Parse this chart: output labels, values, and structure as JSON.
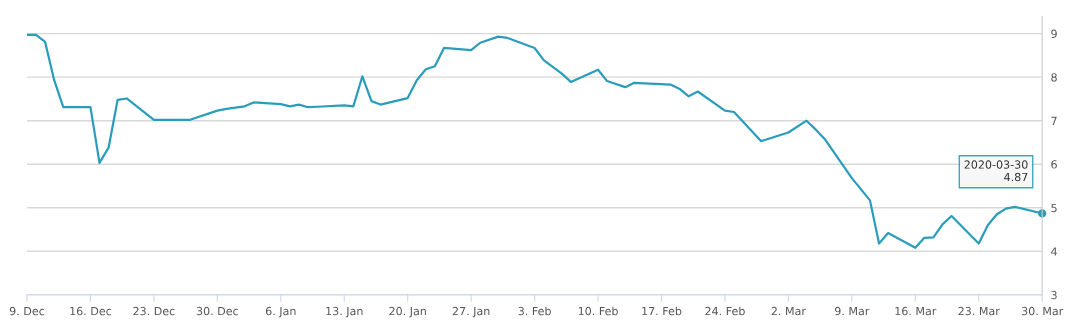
{
  "chart_data": {
    "type": "line",
    "grid": "y",
    "marker": "none",
    "line_style": "solid",
    "legend": false,
    "x": [
      "2019-12-09",
      "2019-12-10",
      "2019-12-11",
      "2019-12-12",
      "2019-12-13",
      "2019-12-16",
      "2019-12-17",
      "2019-12-18",
      "2019-12-19",
      "2019-12-20",
      "2019-12-23",
      "2019-12-27",
      "2019-12-30",
      "2019-12-31",
      "2020-01-02",
      "2020-01-03",
      "2020-01-06",
      "2020-01-07",
      "2020-01-08",
      "2020-01-09",
      "2020-01-10",
      "2020-01-13",
      "2020-01-14",
      "2020-01-15",
      "2020-01-16",
      "2020-01-17",
      "2020-01-20",
      "2020-01-21",
      "2020-01-22",
      "2020-01-23",
      "2020-01-24",
      "2020-01-27",
      "2020-01-28",
      "2020-01-30",
      "2020-01-31",
      "2020-02-03",
      "2020-02-04",
      "2020-02-06",
      "2020-02-07",
      "2020-02-10",
      "2020-02-11",
      "2020-02-13",
      "2020-02-14",
      "2020-02-18",
      "2020-02-19",
      "2020-02-20",
      "2020-02-21",
      "2020-02-24",
      "2020-02-25",
      "2020-02-28",
      "2020-03-02",
      "2020-03-04",
      "2020-03-05",
      "2020-03-06",
      "2020-03-09",
      "2020-03-11",
      "2020-03-12",
      "2020-03-13",
      "2020-03-16",
      "2020-03-17",
      "2020-03-18",
      "2020-03-19",
      "2020-03-20",
      "2020-03-23",
      "2020-03-24",
      "2020-03-25",
      "2020-03-26",
      "2020-03-27",
      "2020-03-30"
    ],
    "series": [
      {
        "color": "#2a9dbb",
        "values": [
          8.97,
          8.97,
          8.81,
          7.93,
          7.31,
          7.31,
          6.03,
          6.38,
          7.48,
          7.51,
          7.02,
          7.02,
          7.23,
          7.27,
          7.33,
          7.42,
          7.38,
          7.33,
          7.37,
          7.31,
          7.32,
          7.35,
          7.33,
          8.02,
          7.45,
          7.37,
          7.52,
          7.93,
          8.18,
          8.25,
          8.67,
          8.62,
          8.79,
          8.93,
          8.9,
          8.67,
          8.39,
          8.08,
          7.89,
          8.17,
          7.91,
          7.77,
          7.87,
          7.83,
          7.73,
          7.56,
          7.67,
          7.23,
          7.2,
          6.53,
          6.73,
          7.0,
          6.8,
          6.58,
          5.68,
          5.17,
          4.18,
          4.42,
          4.08,
          4.31,
          4.32,
          4.62,
          4.81,
          4.18,
          4.6,
          4.85,
          4.98,
          5.02,
          4.87
        ]
      }
    ],
    "xlim": [
      "2019-12-09",
      "2020-03-30"
    ],
    "xticks": [
      {
        "value": "2019-12-09",
        "label": "9. Dec"
      },
      {
        "value": "2019-12-16",
        "label": "16. Dec"
      },
      {
        "value": "2019-12-23",
        "label": "23. Dec"
      },
      {
        "value": "2019-12-30",
        "label": "30. Dec"
      },
      {
        "value": "2020-01-06",
        "label": "6. Jan"
      },
      {
        "value": "2020-01-13",
        "label": "13. Jan"
      },
      {
        "value": "2020-01-20",
        "label": "20. Jan"
      },
      {
        "value": "2020-01-27",
        "label": "27. Jan"
      },
      {
        "value": "2020-02-03",
        "label": "3. Feb"
      },
      {
        "value": "2020-02-10",
        "label": "10. Feb"
      },
      {
        "value": "2020-02-17",
        "label": "17. Feb"
      },
      {
        "value": "2020-02-24",
        "label": "24. Feb"
      },
      {
        "value": "2020-03-02",
        "label": "2. Mar"
      },
      {
        "value": "2020-03-09",
        "label": "9. Mar"
      },
      {
        "value": "2020-03-16",
        "label": "16. Mar"
      },
      {
        "value": "2020-03-23",
        "label": "23. Mar"
      },
      {
        "value": "2020-03-30",
        "label": "30. Mar"
      }
    ],
    "ylim": [
      3,
      9.4
    ],
    "yticks": [
      3,
      4,
      5,
      6,
      7,
      8,
      9
    ],
    "annotations": [
      "2020-03-30",
      "4.87"
    ]
  }
}
